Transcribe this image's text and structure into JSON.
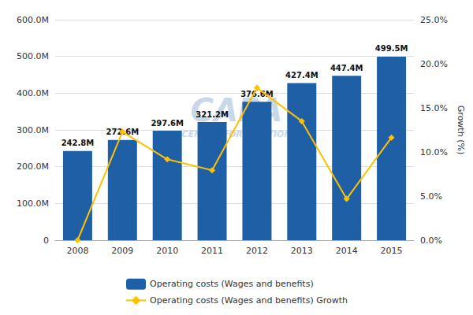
{
  "chart_data": {
    "type": "bar",
    "categories": [
      "2008",
      "2009",
      "2010",
      "2011",
      "2012",
      "2013",
      "2014",
      "2015"
    ],
    "series": [
      {
        "name": "Operating costs (Wages and benefits)",
        "type": "bar",
        "color": "#1F5FA6",
        "values": [
          242.8,
          272.6,
          297.6,
          321.2,
          376.6,
          427.4,
          447.4,
          499.5
        ],
        "value_labels": [
          "242.8M",
          "272.6M",
          "297.6M",
          "321.2M",
          "376.6M",
          "427.4M",
          "447.4M",
          "499.5M"
        ],
        "data_labels": true
      },
      {
        "name": "Operating costs (Wages and benefits) Growth",
        "type": "line",
        "axis": "y2",
        "color": "#FFC000",
        "marker": "diamond",
        "values": [
          0.0,
          12.29,
          9.17,
          7.93,
          17.27,
          13.49,
          4.68,
          11.64
        ]
      }
    ],
    "ylim": [
      0,
      600
    ],
    "yticks": [
      0,
      {
        "value": 100,
        "label": "100.0M"
      },
      {
        "value": 200,
        "label": "200.0M"
      },
      {
        "value": 300,
        "label": "300.0M"
      },
      {
        "value": 400,
        "label": "400.0M"
      },
      {
        "value": 500,
        "label": "500.0M"
      },
      {
        "value": 600,
        "label": "600.0M"
      }
    ],
    "y2lim": [
      0,
      25
    ],
    "y2ticks": [
      {
        "value": 0,
        "label": "0.0%"
      },
      {
        "value": 5,
        "label": "5.0%"
      },
      {
        "value": 10,
        "label": "10.0%"
      },
      {
        "value": 15,
        "label": "15.0%"
      },
      {
        "value": 20,
        "label": "20.0%"
      },
      {
        "value": 25,
        "label": "25.0%"
      }
    ],
    "y2label": "Growth (%)",
    "annotations": [
      "CAPA",
      "CENTRE FOR AVIATION"
    ],
    "grid": true,
    "legend": "bottom"
  }
}
